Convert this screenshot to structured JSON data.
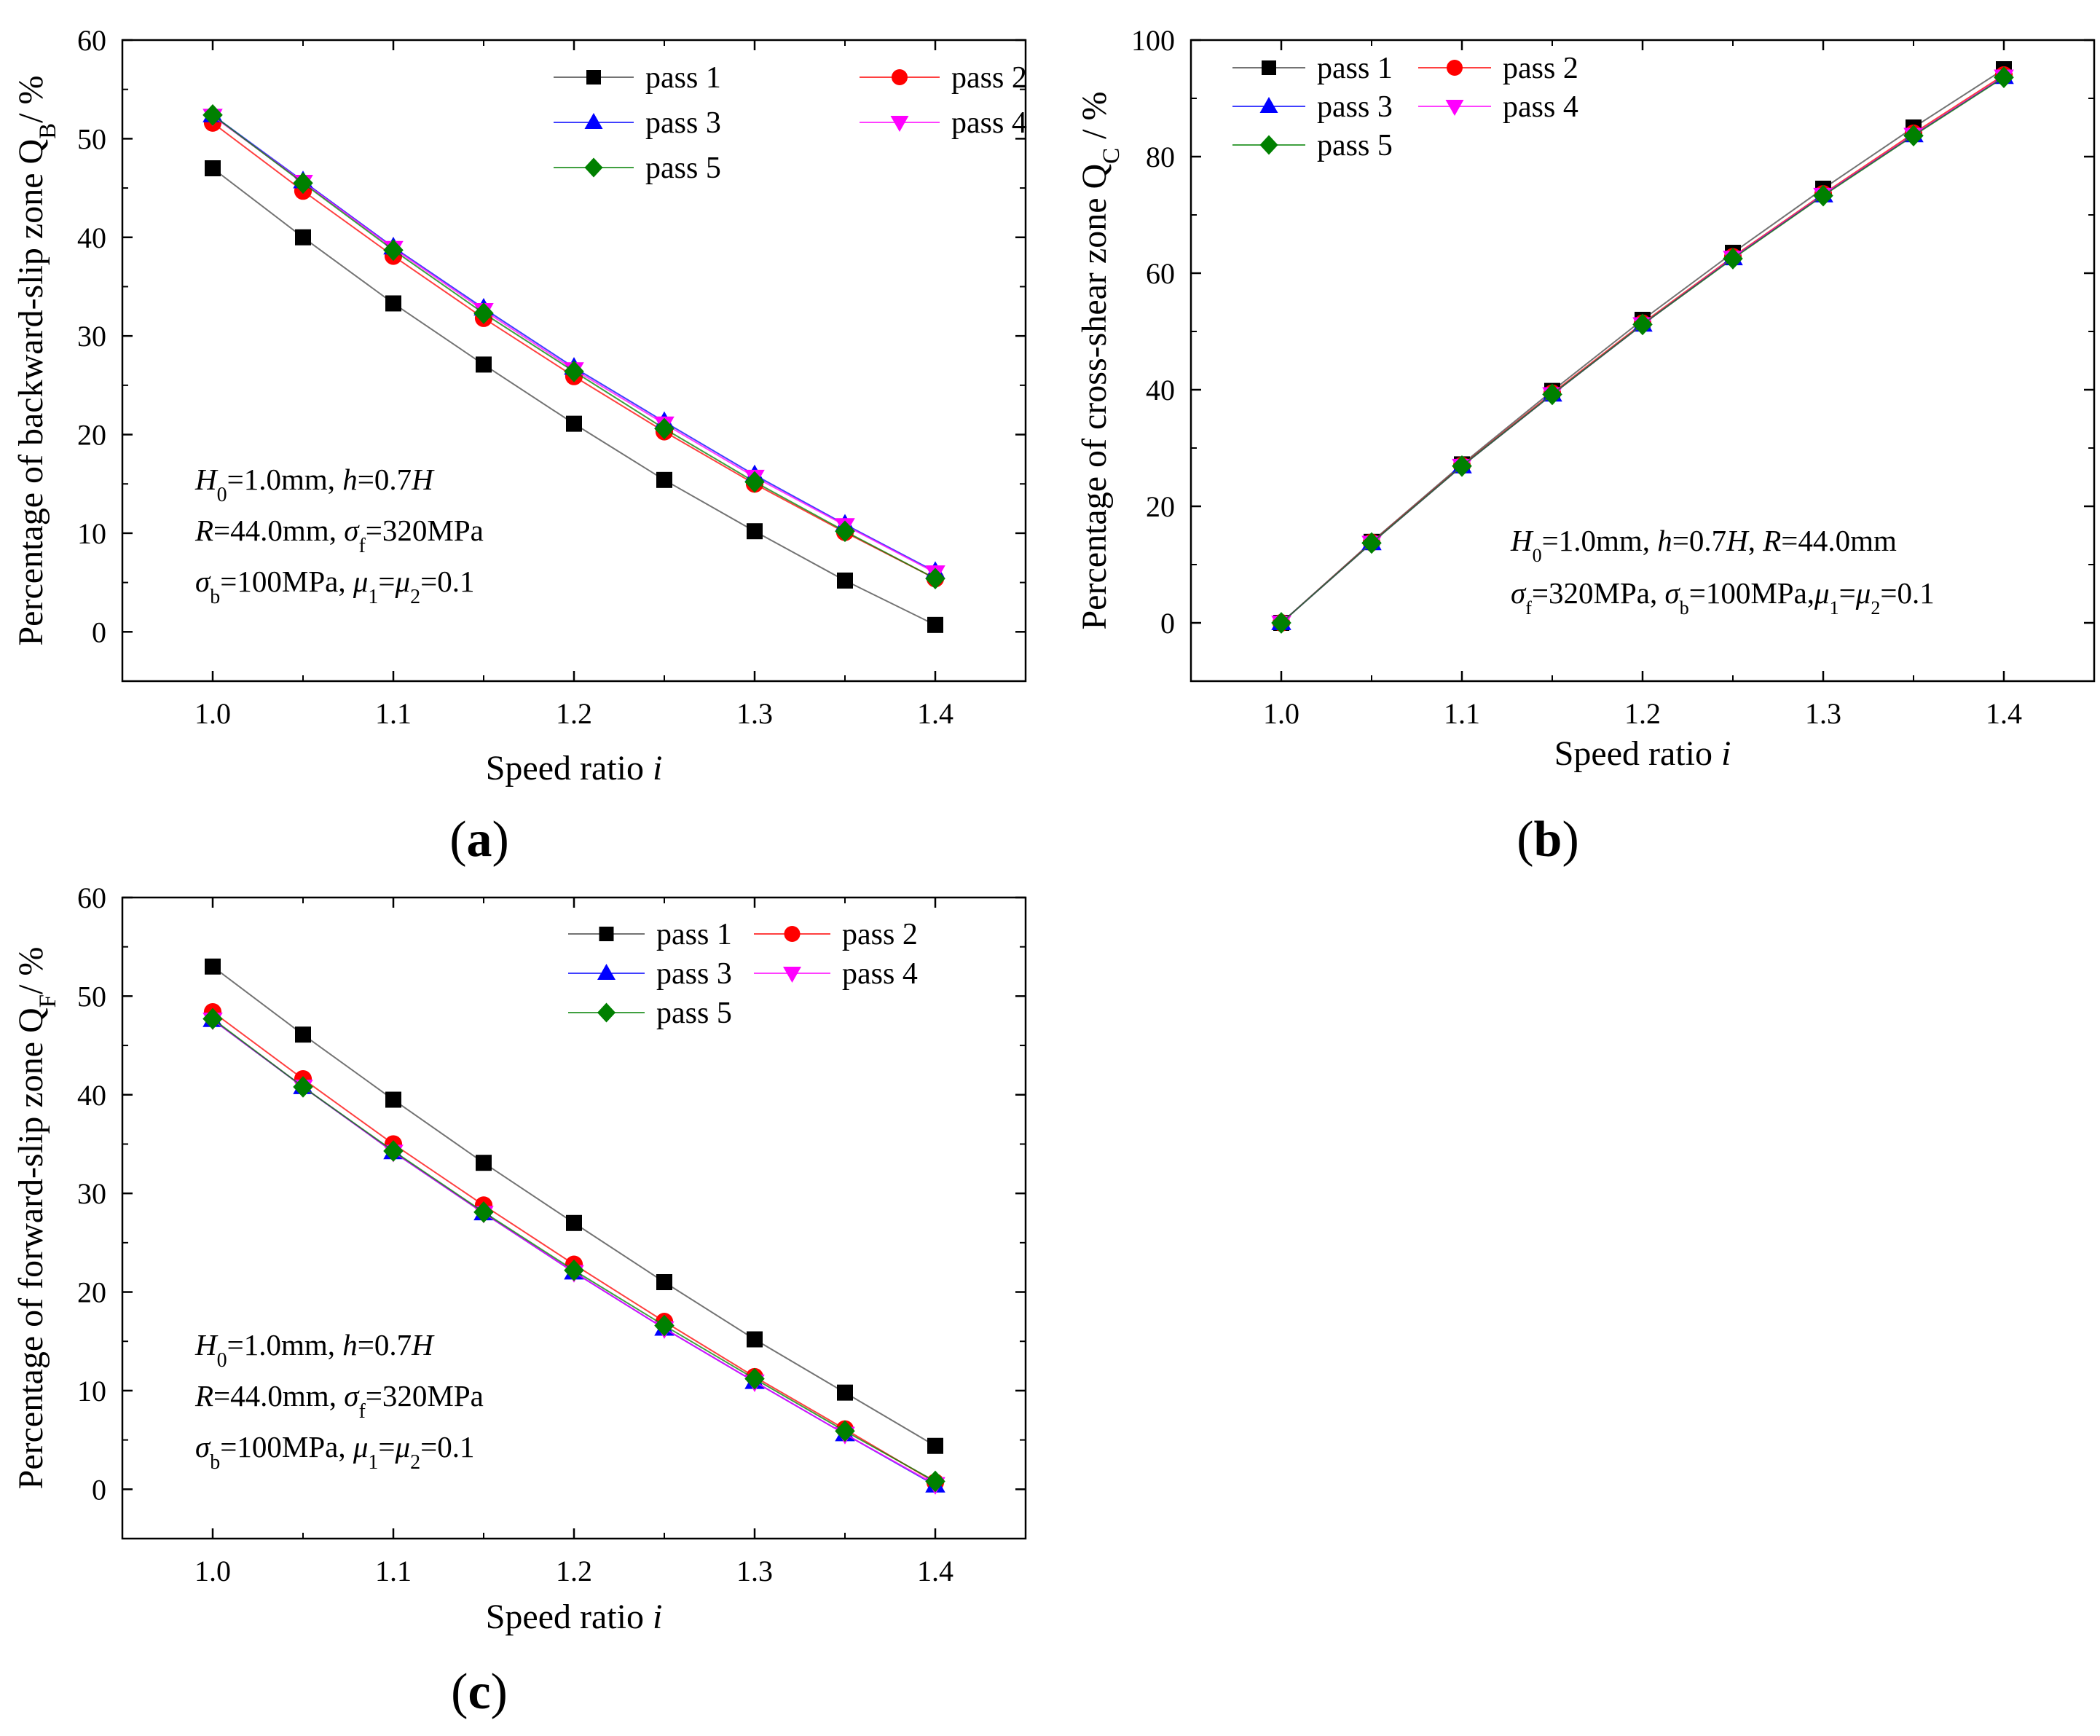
{
  "figure": {
    "series_names": [
      "pass 1",
      "pass 2",
      "pass 3",
      "pass 4",
      "pass 5"
    ],
    "series_colors": [
      "#000000",
      "#ff0000",
      "#0000ff",
      "#ff00ff",
      "#008000"
    ],
    "series_markers": [
      "square",
      "circle",
      "triangle-up",
      "triangle-down",
      "diamond"
    ]
  },
  "chart_data": [
    {
      "id": "a",
      "type": "line",
      "panel_label": "(a)",
      "xlabel": "Speed ratio i",
      "ylabel": "Percentage of backward-slip zone Q_B / %",
      "x": [
        1.0,
        1.05,
        1.1,
        1.15,
        1.2,
        1.25,
        1.3,
        1.35,
        1.4
      ],
      "xlim": [
        0.95,
        1.45
      ],
      "ylim": [
        -5,
        60
      ],
      "xticks": [
        "1.0",
        "1.1",
        "1.2",
        "1.3",
        "1.4"
      ],
      "yticks": [
        "0",
        "10",
        "20",
        "30",
        "40",
        "50",
        "60"
      ],
      "series": [
        {
          "name": "pass 1",
          "values": [
            47.0,
            40.0,
            33.3,
            27.1,
            21.1,
            15.4,
            10.2,
            5.2,
            0.7
          ]
        },
        {
          "name": "pass 2",
          "values": [
            51.6,
            44.7,
            38.1,
            31.8,
            25.9,
            20.3,
            15.0,
            10.1,
            5.4
          ]
        },
        {
          "name": "pass 3",
          "values": [
            52.4,
            45.7,
            39.0,
            32.8,
            26.8,
            21.3,
            15.9,
            10.9,
            6.1
          ]
        },
        {
          "name": "pass 4",
          "values": [
            52.3,
            45.6,
            38.9,
            32.6,
            26.6,
            21.1,
            15.7,
            10.8,
            6.0
          ]
        },
        {
          "name": "pass 5",
          "values": [
            52.4,
            45.5,
            38.7,
            32.3,
            26.4,
            20.6,
            15.2,
            10.2,
            5.4
          ]
        }
      ],
      "legend": "top-right",
      "annotations": [
        [
          {
            "t": "H",
            "s": "i"
          },
          {
            "t": "0",
            "s": "sub"
          },
          {
            "t": "=1.0mm, "
          },
          {
            "t": "h",
            "s": "i"
          },
          {
            "t": "=0.7"
          },
          {
            "t": "H",
            "s": "i"
          }
        ],
        [
          {
            "t": "R",
            "s": "i"
          },
          {
            "t": "=44.0mm, "
          },
          {
            "t": "σ",
            "s": "i"
          },
          {
            "t": "f",
            "s": "sub"
          },
          {
            "t": "=320MPa"
          }
        ],
        [
          {
            "t": "σ",
            "s": "i"
          },
          {
            "t": "b",
            "s": "sub"
          },
          {
            "t": "=100MPa, "
          },
          {
            "t": "μ",
            "s": "i"
          },
          {
            "t": "1",
            "s": "sub"
          },
          {
            "t": "="
          },
          {
            "t": "μ",
            "s": "i"
          },
          {
            "t": "2",
            "s": "sub"
          },
          {
            "t": "=0.1"
          }
        ]
      ],
      "ylabel_parts": [
        {
          "t": "Percentage of backward-slip zone Q"
        },
        {
          "t": "B",
          "s": "sub"
        },
        {
          "t": "/ %"
        }
      ],
      "xlabel_parts": [
        {
          "t": "Speed ratio "
        },
        {
          "t": "i",
          "s": "i"
        }
      ]
    },
    {
      "id": "b",
      "type": "line",
      "panel_label": "(b)",
      "xlabel": "Speed ratio i",
      "ylabel": "Percentage of cross-shear zone Q_C / %",
      "x": [
        1.0,
        1.05,
        1.1,
        1.15,
        1.2,
        1.25,
        1.3,
        1.35,
        1.4
      ],
      "xlim": [
        0.95,
        1.45
      ],
      "ylim": [
        -10,
        100
      ],
      "xticks": [
        "1.0",
        "1.1",
        "1.2",
        "1.3",
        "1.4"
      ],
      "yticks": [
        "0",
        "20",
        "40",
        "60",
        "80",
        "100"
      ],
      "series": [
        {
          "name": "pass 1",
          "values": [
            0,
            13.9,
            27.2,
            39.8,
            52.0,
            63.5,
            74.5,
            85.0,
            95.0
          ]
        },
        {
          "name": "pass 2",
          "values": [
            0,
            13.8,
            27.0,
            39.4,
            51.4,
            62.8,
            73.6,
            84.0,
            94.0
          ]
        },
        {
          "name": "pass 3",
          "values": [
            0,
            13.7,
            26.9,
            39.2,
            51.2,
            62.6,
            73.4,
            83.7,
            93.7
          ]
        },
        {
          "name": "pass 4",
          "values": [
            0,
            13.7,
            26.9,
            39.2,
            51.2,
            62.6,
            73.4,
            83.7,
            93.7
          ]
        },
        {
          "name": "pass 5",
          "values": [
            0,
            13.7,
            26.9,
            39.2,
            51.2,
            62.5,
            73.3,
            83.6,
            93.6
          ]
        }
      ],
      "legend": "top-left",
      "annotations": [
        [
          {
            "t": "H",
            "s": "i"
          },
          {
            "t": "0",
            "s": "sub"
          },
          {
            "t": "=1.0mm, "
          },
          {
            "t": "h",
            "s": "i"
          },
          {
            "t": "=0.7"
          },
          {
            "t": "H",
            "s": "i"
          },
          {
            "t": ", "
          },
          {
            "t": "R",
            "s": "i"
          },
          {
            "t": "=44.0mm"
          }
        ],
        [
          {
            "t": "σ",
            "s": "i"
          },
          {
            "t": "f",
            "s": "sub"
          },
          {
            "t": "=320MPa, "
          },
          {
            "t": "σ",
            "s": "i"
          },
          {
            "t": "b",
            "s": "sub"
          },
          {
            "t": "=100MPa,"
          },
          {
            "t": "μ",
            "s": "i"
          },
          {
            "t": "1",
            "s": "sub"
          },
          {
            "t": "="
          },
          {
            "t": "μ",
            "s": "i"
          },
          {
            "t": "2",
            "s": "sub"
          },
          {
            "t": "=0.1"
          }
        ]
      ],
      "ylabel_parts": [
        {
          "t": "Percentage of cross-shear zone Q"
        },
        {
          "t": "C",
          "s": "sub"
        },
        {
          "t": " / %"
        }
      ],
      "xlabel_parts": [
        {
          "t": "Speed ratio "
        },
        {
          "t": "i",
          "s": "i"
        }
      ]
    },
    {
      "id": "c",
      "type": "line",
      "panel_label": "(c)",
      "xlabel": "Speed ratio i",
      "ylabel": "Percentage of forward-slip zone Q_F / %",
      "x": [
        1.0,
        1.05,
        1.1,
        1.15,
        1.2,
        1.25,
        1.3,
        1.35,
        1.4
      ],
      "xlim": [
        0.95,
        1.45
      ],
      "ylim": [
        -5,
        60
      ],
      "xticks": [
        "1.0",
        "1.1",
        "1.2",
        "1.3",
        "1.4"
      ],
      "yticks": [
        "0",
        "10",
        "20",
        "30",
        "40",
        "50",
        "60"
      ],
      "series": [
        {
          "name": "pass 1",
          "values": [
            53.0,
            46.1,
            39.5,
            33.1,
            27.0,
            21.0,
            15.2,
            9.8,
            4.4
          ]
        },
        {
          "name": "pass 2",
          "values": [
            48.4,
            41.6,
            35.0,
            28.8,
            22.8,
            17.0,
            11.4,
            6.1,
            0.7
          ]
        },
        {
          "name": "pass 3",
          "values": [
            47.6,
            40.8,
            34.2,
            28.0,
            22.0,
            16.3,
            10.9,
            5.6,
            0.4
          ]
        },
        {
          "name": "pass 4",
          "values": [
            47.6,
            40.8,
            34.2,
            28.0,
            22.0,
            16.3,
            10.9,
            5.6,
            0.5
          ]
        },
        {
          "name": "pass 5",
          "values": [
            47.7,
            40.8,
            34.3,
            28.1,
            22.2,
            16.6,
            11.2,
            5.9,
            0.8
          ]
        }
      ],
      "legend": "top-right",
      "annotations": [
        [
          {
            "t": "H",
            "s": "i"
          },
          {
            "t": "0",
            "s": "sub"
          },
          {
            "t": "=1.0mm, "
          },
          {
            "t": "h",
            "s": "i"
          },
          {
            "t": "=0.7"
          },
          {
            "t": "H",
            "s": "i"
          }
        ],
        [
          {
            "t": "R",
            "s": "i"
          },
          {
            "t": "=44.0mm, "
          },
          {
            "t": "σ",
            "s": "i"
          },
          {
            "t": "f",
            "s": "sub"
          },
          {
            "t": "=320MPa"
          }
        ],
        [
          {
            "t": "σ",
            "s": "i"
          },
          {
            "t": "b",
            "s": "sub"
          },
          {
            "t": "=100MPa, "
          },
          {
            "t": "μ",
            "s": "i"
          },
          {
            "t": "1",
            "s": "sub"
          },
          {
            "t": "="
          },
          {
            "t": "μ",
            "s": "i"
          },
          {
            "t": "2",
            "s": "sub"
          },
          {
            "t": "=0.1"
          }
        ]
      ],
      "ylabel_parts": [
        {
          "t": "Percentage of forward-slip zone Q"
        },
        {
          "t": "F",
          "s": "sub"
        },
        {
          "t": "/ %"
        }
      ],
      "xlabel_parts": [
        {
          "t": "Speed ratio "
        },
        {
          "t": "i",
          "s": "i"
        }
      ]
    }
  ]
}
